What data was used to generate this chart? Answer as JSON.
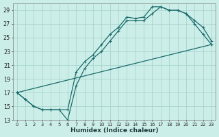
{
  "xlabel": "Humidex (Indice chaleur)",
  "background_color": "#cceee8",
  "grid_color": "#aad4ce",
  "line_color": "#1a6b6b",
  "xlim": [
    -0.5,
    23.5
  ],
  "ylim": [
    13,
    30
  ],
  "yticks": [
    13,
    15,
    17,
    19,
    21,
    23,
    25,
    27,
    29
  ],
  "xticks": [
    0,
    1,
    2,
    3,
    4,
    5,
    6,
    7,
    8,
    9,
    10,
    11,
    12,
    13,
    14,
    15,
    16,
    17,
    18,
    19,
    20,
    21,
    22,
    23
  ],
  "line1_x": [
    0,
    1,
    2,
    3,
    4,
    5,
    6,
    7,
    8,
    9,
    10,
    11,
    12,
    13,
    14,
    15,
    16,
    17,
    18,
    19,
    20,
    21,
    22,
    23
  ],
  "line1_y": [
    17.0,
    16.0,
    15.0,
    14.5,
    14.5,
    14.5,
    13.0,
    18.0,
    20.5,
    22.0,
    23.0,
    24.5,
    26.0,
    27.5,
    27.5,
    27.5,
    28.5,
    29.5,
    29.0,
    29.0,
    28.5,
    27.0,
    25.5,
    24.0
  ],
  "line2_x": [
    0,
    1,
    2,
    3,
    4,
    5,
    6,
    7,
    8,
    9,
    10,
    11,
    12,
    13,
    14,
    15,
    16,
    17,
    18,
    19,
    20,
    21,
    22,
    23
  ],
  "line2_y": [
    17.0,
    16.0,
    15.0,
    14.5,
    14.5,
    14.5,
    14.5,
    20.0,
    21.5,
    22.5,
    24.0,
    25.5,
    26.5,
    28.0,
    27.8,
    28.0,
    29.5,
    29.5,
    29.0,
    29.0,
    28.5,
    27.5,
    26.5,
    24.5
  ],
  "line3_x": [
    0,
    23
  ],
  "line3_y": [
    17.0,
    24.0
  ]
}
